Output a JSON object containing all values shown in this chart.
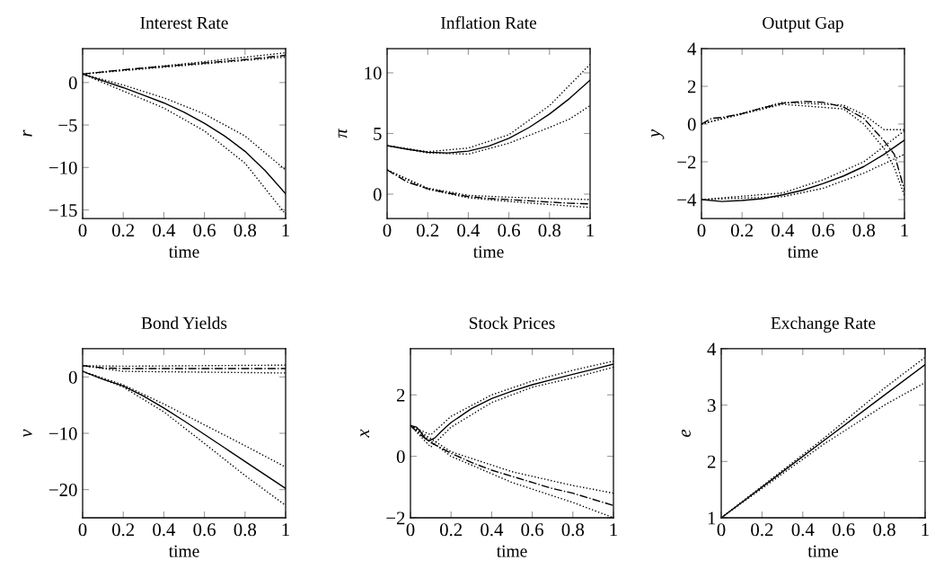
{
  "chart_data": [
    {
      "type": "line",
      "title": "Interest Rate",
      "xlabel": "time",
      "ylabel": "r",
      "xlim": [
        0,
        1
      ],
      "ylim": [
        -16,
        4
      ],
      "xticks": [
        0,
        0.2,
        0.4,
        0.6,
        0.8,
        1
      ],
      "yticks": [
        -15,
        -10,
        -5,
        0
      ],
      "series": [
        {
          "color": "#000000",
          "line_style": "solid",
          "x": [
            0,
            0.1,
            0.2,
            0.3,
            0.4,
            0.5,
            0.6,
            0.7,
            0.8,
            0.9,
            1
          ],
          "values": [
            1.0,
            0.2,
            -0.6,
            -1.5,
            -2.4,
            -3.5,
            -4.8,
            -6.3,
            -8.1,
            -10.4,
            -13.1
          ]
        },
        {
          "color": "#000000",
          "line_style": "dotted",
          "x": [
            0,
            0.2,
            0.4,
            0.6,
            0.8,
            1
          ],
          "values": [
            1.0,
            -0.3,
            -1.8,
            -3.7,
            -6.3,
            -10.3
          ]
        },
        {
          "color": "#000000",
          "line_style": "dotted",
          "x": [
            0,
            0.2,
            0.4,
            0.6,
            0.8,
            1
          ],
          "values": [
            1.0,
            -1.0,
            -3.0,
            -5.7,
            -9.5,
            -15.5
          ]
        },
        {
          "color": "#000000",
          "line_style": "dashdot",
          "x": [
            0,
            0.2,
            0.4,
            0.6,
            0.8,
            1
          ],
          "values": [
            1.0,
            1.5,
            1.9,
            2.3,
            2.7,
            3.2
          ]
        },
        {
          "color": "#000000",
          "line_style": "dotted",
          "x": [
            0,
            0.5,
            1
          ],
          "values": [
            1.0,
            2.2,
            3.5
          ]
        },
        {
          "color": "#000000",
          "line_style": "dotted",
          "x": [
            0,
            0.5,
            1
          ],
          "values": [
            1.0,
            2.0,
            3.0
          ]
        }
      ]
    },
    {
      "type": "line",
      "title": "Inflation Rate",
      "xlabel": "time",
      "ylabel": "π",
      "xlim": [
        0,
        1
      ],
      "ylim": [
        -2,
        12
      ],
      "xticks": [
        0,
        0.2,
        0.4,
        0.6,
        0.8,
        1
      ],
      "yticks": [
        0,
        5,
        10
      ],
      "series": [
        {
          "color": "#000000",
          "line_style": "solid",
          "x": [
            0,
            0.1,
            0.2,
            0.3,
            0.4,
            0.5,
            0.6,
            0.7,
            0.8,
            0.9,
            1
          ],
          "values": [
            4.0,
            3.7,
            3.45,
            3.4,
            3.55,
            3.95,
            4.6,
            5.5,
            6.6,
            7.9,
            9.4
          ]
        },
        {
          "color": "#000000",
          "line_style": "dotted",
          "x": [
            0,
            0.2,
            0.4,
            0.6,
            0.8,
            1
          ],
          "values": [
            4.0,
            3.5,
            3.8,
            4.9,
            7.3,
            10.7
          ]
        },
        {
          "color": "#000000",
          "line_style": "dotted",
          "x": [
            0,
            0.2,
            0.4,
            0.6,
            0.8,
            0.9,
            1
          ],
          "values": [
            4.0,
            3.4,
            3.3,
            4.2,
            5.5,
            6.2,
            7.3
          ]
        },
        {
          "color": "#000000",
          "line_style": "dashdot",
          "x": [
            0,
            0.1,
            0.2,
            0.3,
            0.4,
            0.5,
            0.6,
            0.7,
            0.8,
            0.9,
            1
          ],
          "values": [
            2.0,
            1.0,
            0.45,
            0.1,
            -0.2,
            -0.35,
            -0.45,
            -0.55,
            -0.65,
            -0.75,
            -0.8
          ]
        },
        {
          "color": "#000000",
          "line_style": "dotted",
          "x": [
            0,
            0.2,
            0.4,
            0.6,
            0.8,
            1
          ],
          "values": [
            2.0,
            0.5,
            -0.1,
            -0.25,
            -0.35,
            -0.45
          ]
        },
        {
          "color": "#000000",
          "line_style": "dotted",
          "x": [
            0,
            0.2,
            0.4,
            0.6,
            0.8,
            1
          ],
          "values": [
            2.0,
            0.4,
            -0.3,
            -0.6,
            -0.85,
            -1.1
          ]
        }
      ]
    },
    {
      "type": "line",
      "title": "Output Gap",
      "xlabel": "time",
      "ylabel": "y",
      "xlim": [
        0,
        1
      ],
      "ylim": [
        -5,
        4
      ],
      "xticks": [
        0,
        0.2,
        0.4,
        0.6,
        0.8,
        1
      ],
      "yticks": [
        -4,
        -2,
        0,
        2,
        4
      ],
      "series": [
        {
          "color": "#000000",
          "line_style": "solid",
          "x": [
            0,
            0.1,
            0.2,
            0.3,
            0.4,
            0.5,
            0.6,
            0.7,
            0.8,
            0.9,
            1
          ],
          "values": [
            -4.0,
            -4.1,
            -4.05,
            -3.95,
            -3.75,
            -3.5,
            -3.15,
            -2.75,
            -2.25,
            -1.6,
            -0.85
          ]
        },
        {
          "color": "#000000",
          "line_style": "dotted",
          "x": [
            0,
            0.4,
            0.6,
            0.8,
            1
          ],
          "values": [
            -4.0,
            -3.65,
            -2.95,
            -2.0,
            -0.35
          ]
        },
        {
          "color": "#000000",
          "line_style": "dotted",
          "x": [
            0,
            0.4,
            0.6,
            0.8,
            1
          ],
          "values": [
            -4.0,
            -3.85,
            -3.4,
            -2.6,
            -1.6
          ]
        },
        {
          "color": "#000000",
          "line_style": "dashdot",
          "x": [
            0,
            0.05,
            0.1,
            0.2,
            0.3,
            0.4,
            0.5,
            0.6,
            0.7,
            0.8,
            0.85,
            0.9,
            0.95,
            1
          ],
          "values": [
            0.0,
            0.3,
            0.35,
            0.55,
            0.85,
            1.1,
            1.2,
            1.15,
            0.9,
            0.3,
            -0.3,
            -0.9,
            -1.6,
            -3.5
          ]
        },
        {
          "color": "#000000",
          "line_style": "dotted",
          "x": [
            0,
            0.4,
            0.7,
            0.8,
            0.9,
            1
          ],
          "values": [
            0.0,
            1.15,
            1.0,
            0.5,
            -0.3,
            -0.3
          ]
        },
        {
          "color": "#000000",
          "line_style": "dotted",
          "x": [
            0,
            0.4,
            0.7,
            0.8,
            0.9,
            0.95,
            1
          ],
          "values": [
            0.0,
            1.05,
            0.8,
            0.0,
            -1.3,
            -2.3,
            -3.8
          ]
        }
      ]
    },
    {
      "type": "line",
      "title": "Bond Yields",
      "xlabel": "time",
      "ylabel": "v",
      "xlim": [
        0,
        1
      ],
      "ylim": [
        -25,
        5
      ],
      "xticks": [
        0,
        0.2,
        0.4,
        0.6,
        0.8,
        1
      ],
      "yticks": [
        -20,
        -10,
        0
      ],
      "series": [
        {
          "color": "#000000",
          "line_style": "solid",
          "x": [
            0,
            0.1,
            0.2,
            0.3,
            0.4,
            0.5,
            0.6,
            0.7,
            0.8,
            0.9,
            1
          ],
          "values": [
            1.0,
            -0.4,
            -1.6,
            -3.4,
            -5.5,
            -7.8,
            -10.2,
            -12.6,
            -15.0,
            -17.4,
            -19.8
          ]
        },
        {
          "color": "#000000",
          "line_style": "dotted",
          "x": [
            0,
            0.2,
            0.4,
            0.6,
            0.8,
            1
          ],
          "values": [
            1.0,
            -1.4,
            -4.8,
            -8.5,
            -12.2,
            -16.0
          ]
        },
        {
          "color": "#000000",
          "line_style": "dotted",
          "x": [
            0,
            0.2,
            0.4,
            0.6,
            0.8,
            1
          ],
          "values": [
            1.0,
            -1.8,
            -6.2,
            -11.8,
            -17.5,
            -22.8
          ]
        },
        {
          "color": "#000000",
          "line_style": "dashdot",
          "x": [
            0,
            0.1,
            0.2,
            0.6,
            1
          ],
          "values": [
            2.0,
            1.6,
            1.5,
            1.5,
            1.5
          ]
        },
        {
          "color": "#000000",
          "line_style": "dotted",
          "x": [
            0,
            0.2,
            1
          ],
          "values": [
            2.0,
            1.9,
            2.1
          ]
        },
        {
          "color": "#000000",
          "line_style": "dotted",
          "x": [
            0,
            0.2,
            1
          ],
          "values": [
            2.0,
            1.0,
            0.7
          ]
        }
      ]
    },
    {
      "type": "line",
      "title": "Stock Prices",
      "xlabel": "time",
      "ylabel": "x",
      "xlim": [
        0,
        1
      ],
      "ylim": [
        -2,
        3.5
      ],
      "xticks": [
        0,
        0.2,
        0.4,
        0.6,
        0.8,
        1
      ],
      "yticks": [
        -2,
        0,
        2
      ],
      "series": [
        {
          "color": "#000000",
          "line_style": "solid",
          "x": [
            0,
            0.03,
            0.05,
            0.07,
            0.09,
            0.12,
            0.15,
            0.2,
            0.3,
            0.4,
            0.5,
            0.6,
            0.7,
            0.8,
            0.9,
            1
          ],
          "values": [
            1.0,
            0.95,
            0.8,
            0.6,
            0.5,
            0.6,
            0.8,
            1.1,
            1.55,
            1.88,
            2.12,
            2.33,
            2.5,
            2.67,
            2.83,
            3.0
          ]
        },
        {
          "color": "#000000",
          "line_style": "dotted",
          "x": [
            0,
            0.1,
            0.2,
            0.4,
            0.6,
            0.8,
            1
          ],
          "values": [
            1.0,
            0.7,
            1.3,
            2.0,
            2.45,
            2.8,
            3.1
          ]
        },
        {
          "color": "#000000",
          "line_style": "dotted",
          "x": [
            0,
            0.1,
            0.2,
            0.4,
            0.6,
            0.8,
            1
          ],
          "values": [
            1.0,
            0.3,
            0.95,
            1.75,
            2.25,
            2.55,
            2.9
          ]
        },
        {
          "color": "#000000",
          "line_style": "dashdot",
          "x": [
            0,
            0.05,
            0.1,
            0.2,
            0.3,
            0.4,
            0.5,
            0.6,
            0.7,
            0.8,
            0.9,
            1
          ],
          "values": [
            1.0,
            0.7,
            0.45,
            0.1,
            -0.2,
            -0.45,
            -0.65,
            -0.85,
            -1.05,
            -1.2,
            -1.4,
            -1.6
          ]
        },
        {
          "color": "#000000",
          "line_style": "dotted",
          "x": [
            0,
            0.2,
            0.5,
            0.8,
            1
          ],
          "values": [
            1.0,
            0.15,
            -0.5,
            -0.95,
            -1.2
          ]
        },
        {
          "color": "#000000",
          "line_style": "dotted",
          "x": [
            0,
            0.2,
            0.5,
            0.8,
            1
          ],
          "values": [
            1.0,
            0.0,
            -0.85,
            -1.5,
            -2.0
          ]
        }
      ]
    },
    {
      "type": "line",
      "title": "Exchange Rate",
      "xlabel": "time",
      "ylabel": "e",
      "xlim": [
        0,
        1
      ],
      "ylim": [
        1,
        4
      ],
      "xticks": [
        0,
        0.2,
        0.4,
        0.6,
        0.8,
        1
      ],
      "yticks": [
        1,
        2,
        3,
        4
      ],
      "series": [
        {
          "color": "#000000",
          "line_style": "solid",
          "x": [
            0,
            0.25,
            0.5,
            0.75,
            1
          ],
          "values": [
            1.0,
            1.68,
            2.36,
            3.04,
            3.72
          ]
        },
        {
          "color": "#000000",
          "line_style": "dotted",
          "x": [
            0,
            0.5,
            0.8,
            1
          ],
          "values": [
            1.0,
            2.4,
            3.3,
            3.85
          ]
        },
        {
          "color": "#000000",
          "line_style": "dotted",
          "x": [
            0,
            0.5,
            0.8,
            1
          ],
          "values": [
            1.0,
            2.3,
            3.0,
            3.4
          ]
        }
      ]
    }
  ]
}
